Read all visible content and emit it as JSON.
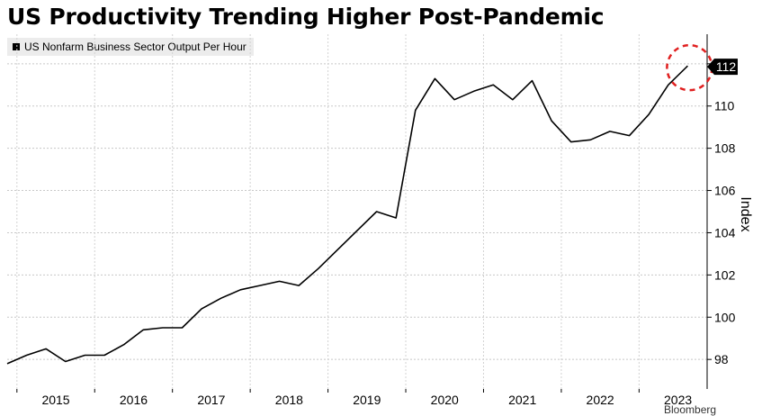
{
  "title": "US Productivity Trending Higher Post-Pandemic",
  "source": "Bloomberg",
  "chart_data": {
    "type": "line",
    "title": "US Productivity Trending Higher Post-Pandemic",
    "ylabel": "Index",
    "xlabel": "",
    "ylim": [
      96.6,
      113.4
    ],
    "yticks": [
      98,
      100,
      102,
      104,
      106,
      108,
      110,
      112
    ],
    "year_labels": [
      "2015",
      "2016",
      "2017",
      "2018",
      "2019",
      "2020",
      "2021",
      "2022",
      "2023"
    ],
    "grid": true,
    "legend_position": "top-left",
    "last_value_label": "112",
    "highlight": "dashed red circle around latest value",
    "series": [
      {
        "name": "US Nonfarm Business Sector Output Per Hour",
        "color": "#000000",
        "x": [
          "2014 Q4",
          "2015 Q1",
          "2015 Q2",
          "2015 Q3",
          "2015 Q4",
          "2016 Q1",
          "2016 Q2",
          "2016 Q3",
          "2016 Q4",
          "2017 Q1",
          "2017 Q2",
          "2017 Q3",
          "2017 Q4",
          "2018 Q1",
          "2018 Q2",
          "2018 Q3",
          "2018 Q4",
          "2019 Q1",
          "2019 Q2",
          "2019 Q3",
          "2019 Q4",
          "2020 Q1",
          "2020 Q2",
          "2020 Q3",
          "2020 Q4",
          "2021 Q1",
          "2021 Q2",
          "2021 Q3",
          "2021 Q4",
          "2022 Q1",
          "2022 Q2",
          "2022 Q3",
          "2022 Q4",
          "2023 Q1",
          "2023 Q2",
          "2023 Q3",
          "2023 Q4"
        ],
        "values": [
          97.8,
          98.2,
          98.5,
          97.9,
          98.2,
          98.2,
          98.7,
          99.4,
          99.5,
          99.5,
          100.4,
          100.9,
          101.3,
          101.5,
          101.7,
          101.5,
          102.3,
          103.2,
          104.1,
          105.0,
          104.7,
          109.8,
          111.3,
          110.3,
          110.7,
          111.0,
          110.3,
          111.2,
          109.3,
          108.3,
          108.4,
          108.8,
          108.6,
          109.6,
          111.0,
          111.9,
          null
        ]
      }
    ]
  }
}
